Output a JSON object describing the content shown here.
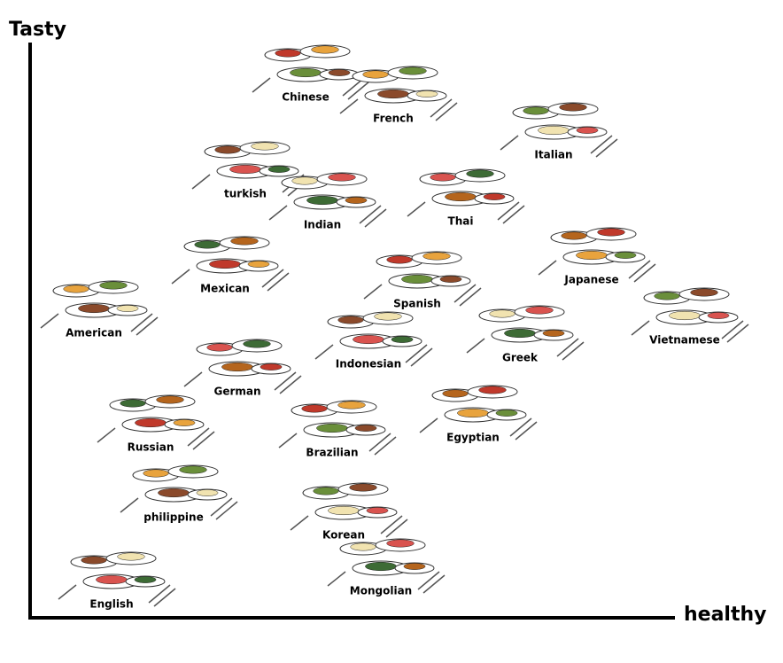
{
  "axes": {
    "y_label": "Tasty",
    "x_label": "healthy"
  },
  "cuisines": [
    {
      "label": "Chinese"
    },
    {
      "label": "French"
    },
    {
      "label": "Italian"
    },
    {
      "label": "turkish"
    },
    {
      "label": "Indian"
    },
    {
      "label": "Thai"
    },
    {
      "label": "Mexican"
    },
    {
      "label": "Japanese"
    },
    {
      "label": "Spanish"
    },
    {
      "label": "American"
    },
    {
      "label": "Vietnamese"
    },
    {
      "label": "Indonesian"
    },
    {
      "label": "Greek"
    },
    {
      "label": "German"
    },
    {
      "label": "Russian"
    },
    {
      "label": "Egyptian"
    },
    {
      "label": "Brazilian"
    },
    {
      "label": "philippine"
    },
    {
      "label": "Korean"
    },
    {
      "label": "English"
    },
    {
      "label": "Mongolian"
    }
  ]
}
